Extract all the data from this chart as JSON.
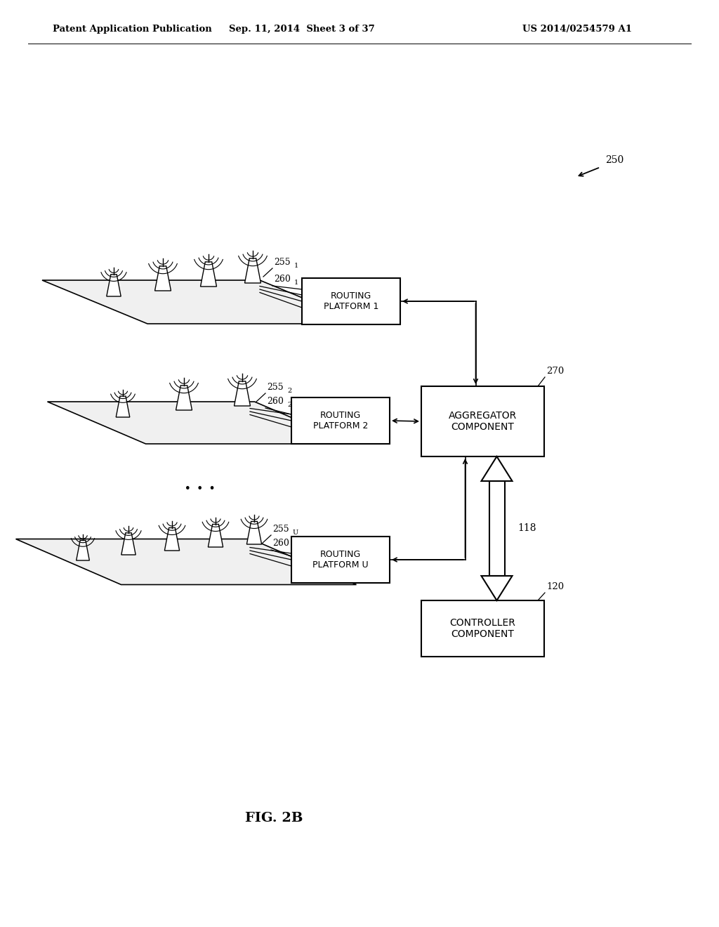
{
  "bg_color": "#ffffff",
  "header_left": "Patent Application Publication",
  "header_mid": "Sep. 11, 2014  Sheet 3 of 37",
  "header_right": "US 2014/0254579 A1",
  "fig_label": "FIG. 2B",
  "label_250": "250",
  "label_270": "270",
  "label_120": "120",
  "label_118": "118",
  "routing1_label": "ROUTING\nPLATFORM 1",
  "routing2_label": "ROUTING\nPLATFORM 2",
  "routingU_label": "ROUTING\nPLATFORM U",
  "agg_label": "AGGREGATOR\nCOMPONENT",
  "ctrl_label": "CONTROLLER\nCOMPONENT",
  "platform_color": "#f0f0f0",
  "box_color": "#ffffff"
}
